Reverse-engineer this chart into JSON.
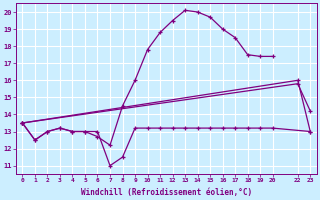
{
  "xlabel": "Windchill (Refroidissement éolien,°C)",
  "bg_color": "#cceeff",
  "grid_color": "#ffffff",
  "line_color": "#800080",
  "xlim": [
    -0.5,
    23.5
  ],
  "ylim": [
    10.5,
    20.5
  ],
  "yticks": [
    11,
    12,
    13,
    14,
    15,
    16,
    17,
    18,
    19,
    20
  ],
  "xticks": [
    0,
    1,
    2,
    3,
    4,
    5,
    6,
    7,
    8,
    9,
    10,
    11,
    12,
    13,
    14,
    15,
    16,
    17,
    18,
    19,
    20,
    22,
    23
  ],
  "xtick_labels": [
    "0",
    "1",
    "2",
    "3",
    "4",
    "5",
    "6",
    "7",
    "8",
    "9",
    "10",
    "11",
    "12",
    "13",
    "14",
    "15",
    "16",
    "17",
    "18",
    "19",
    "20",
    "22",
    "23"
  ],
  "series": [
    {
      "comment": "main curve peaking at 20",
      "x": [
        0,
        1,
        2,
        3,
        4,
        5,
        6,
        7,
        8,
        9,
        10,
        11,
        12,
        13,
        14,
        15,
        16,
        17,
        18,
        19,
        20
      ],
      "y": [
        13.5,
        12.5,
        13.0,
        13.2,
        13.0,
        13.0,
        12.7,
        12.2,
        14.5,
        16.0,
        17.8,
        18.8,
        19.5,
        20.1,
        20.0,
        19.7,
        19.0,
        18.5,
        17.5,
        17.4,
        17.4
      ]
    },
    {
      "comment": "flat line ~13 with dip at 6-7",
      "x": [
        0,
        1,
        2,
        3,
        4,
        5,
        6,
        7,
        8,
        9,
        10,
        11,
        12,
        13,
        14,
        15,
        16,
        17,
        18,
        19,
        20,
        23
      ],
      "y": [
        13.5,
        12.5,
        13.0,
        13.2,
        13.0,
        13.0,
        13.0,
        11.0,
        11.5,
        13.2,
        13.2,
        13.2,
        13.2,
        13.2,
        13.2,
        13.2,
        13.2,
        13.2,
        13.2,
        13.2,
        13.2,
        13.0
      ]
    },
    {
      "comment": "slow rising diagonal line ending around 15.8",
      "x": [
        0,
        22,
        23
      ],
      "y": [
        13.5,
        15.8,
        14.2
      ]
    },
    {
      "comment": "rising line ending at 22=16, 23=13",
      "x": [
        0,
        22,
        23
      ],
      "y": [
        13.5,
        16.0,
        13.0
      ]
    }
  ]
}
